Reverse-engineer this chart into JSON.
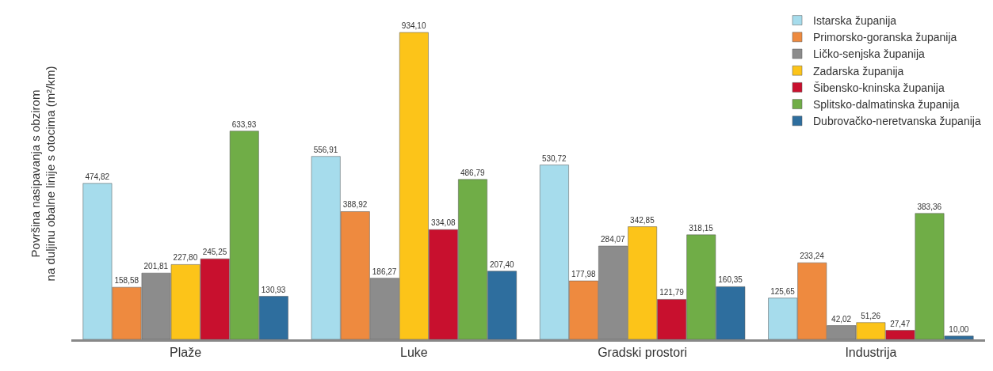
{
  "chart_data": {
    "type": "bar",
    "ylabel": "Površina nasipavanja s obzirom na duljinu obalne linije s otocima (m²/km)",
    "categories": [
      "Plaže",
      "Luke",
      "Gradski prostori",
      "Industrija"
    ],
    "series": [
      {
        "name": "Istarska županija",
        "color": "#a6dcec",
        "values": [
          474.82,
          556.91,
          530.72,
          125.65
        ],
        "value_labels": [
          "474,82",
          "556,91",
          "530,72",
          "125,65"
        ]
      },
      {
        "name": "Primorsko-goranska županija",
        "color": "#ee8a3f",
        "values": [
          158.58,
          388.92,
          177.98,
          233.24
        ],
        "value_labels": [
          "158,58",
          "388,92",
          "177,98",
          "233,24"
        ]
      },
      {
        "name": "Ličko-senjska županija",
        "color": "#8c8c8c",
        "values": [
          201.81,
          186.27,
          284.07,
          42.02
        ],
        "value_labels": [
          "201,81",
          "186,27",
          "284,07",
          "42,02"
        ]
      },
      {
        "name": "Zadarska županija",
        "color": "#fcc419",
        "values": [
          227.8,
          934.1,
          342.85,
          51.26
        ],
        "value_labels": [
          "227,80",
          "934,10",
          "342,85",
          "51,26"
        ]
      },
      {
        "name": "Šibensko-kninska županija",
        "color": "#c8102e",
        "values": [
          245.25,
          334.08,
          121.79,
          27.47
        ],
        "value_labels": [
          "245,25",
          "334,08",
          "121,79",
          "27,47"
        ]
      },
      {
        "name": "Splitsko-dalmatinska županija",
        "color": "#70ad47",
        "values": [
          633.93,
          486.79,
          318.15,
          383.36
        ],
        "value_labels": [
          "633,93",
          "486,79",
          "318,15",
          "383,36"
        ]
      },
      {
        "name": "Dubrovačko-neretvanska županija",
        "color": "#2e6e9e",
        "values": [
          130.93,
          207.4,
          160.35,
          10.0
        ],
        "value_labels": [
          "130,93",
          "207,40",
          "160,35",
          "10,00"
        ]
      }
    ],
    "tick_labels": "x",
    "legend": "right"
  }
}
